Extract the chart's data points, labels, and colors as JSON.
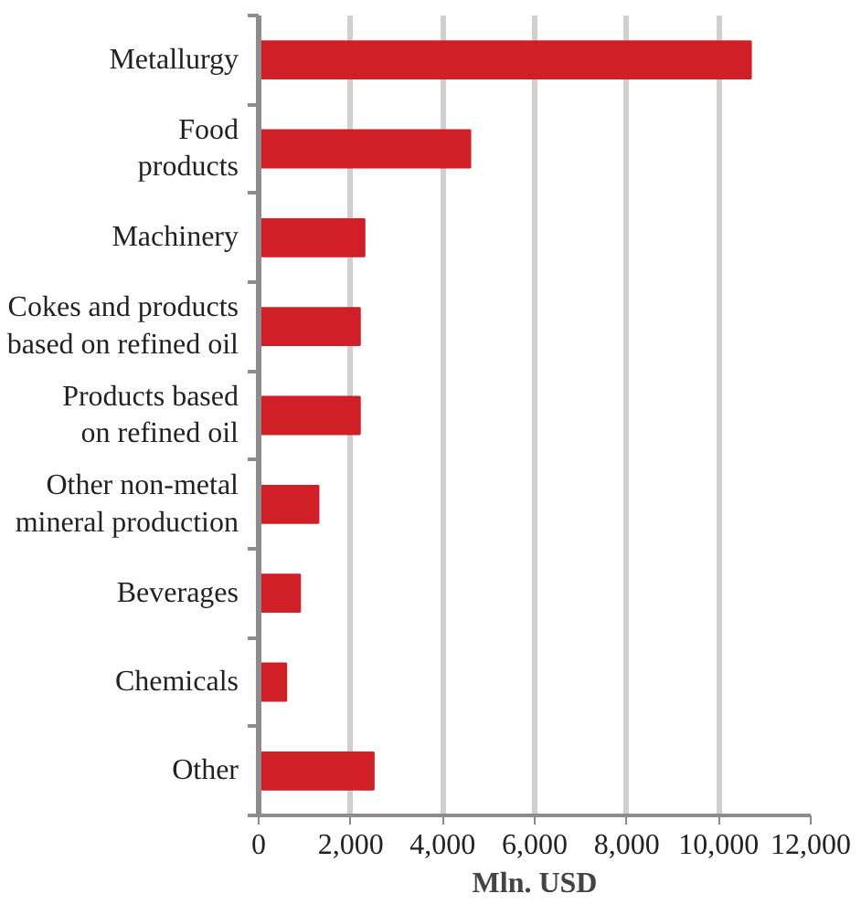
{
  "chart_data": {
    "type": "bar",
    "orientation": "horizontal",
    "xlabel": "Mln. USD",
    "categories": [
      "Metallurgy",
      "Food\nproducts",
      "Machinery",
      "Cokes and products\nbased on refined oil",
      "Products based\non refined oil",
      "Other non-metal\nmineral production",
      "Beverages",
      "Chemicals",
      "Other"
    ],
    "values": [
      10700,
      4600,
      2300,
      2200,
      2200,
      1300,
      900,
      600,
      2500
    ],
    "color": "#d01f26",
    "xlim": [
      0,
      12000
    ],
    "xticks": [
      {
        "value": 0,
        "label": "0"
      },
      {
        "value": 2000,
        "label": "2,000"
      },
      {
        "value": 4000,
        "label": "4,000"
      },
      {
        "value": 6000,
        "label": "6,000"
      },
      {
        "value": 8000,
        "label": "8,000"
      },
      {
        "value": 10000,
        "label": "10,000"
      },
      {
        "value": 12000,
        "label": "12,000"
      }
    ],
    "grid": "x"
  }
}
